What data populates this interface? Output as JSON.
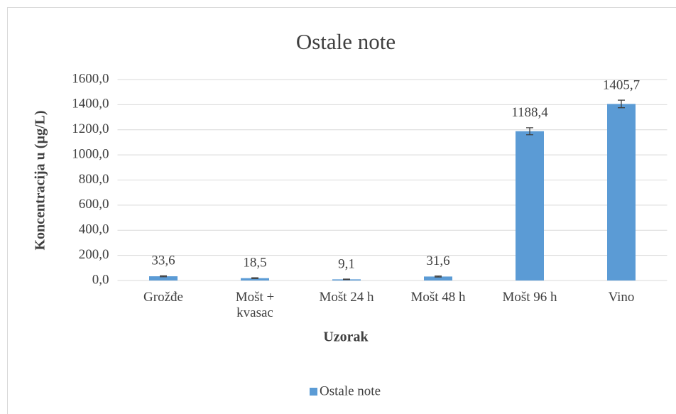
{
  "chart_data": {
    "type": "bar",
    "title": "Ostale note",
    "ylabel": "Koncentracija u (µg/L)",
    "xlabel": "Uzorak",
    "categories": [
      "Grožđe",
      "Mošt + kvasac",
      "Mošt 24 h",
      "Mošt 48 h",
      "Mošt 96 h",
      "Vino"
    ],
    "series": [
      {
        "name": "Ostale note",
        "color": "#5b9bd5",
        "values": [
          33.6,
          18.5,
          9.1,
          31.6,
          1188.4,
          1405.7
        ],
        "value_labels": [
          "33,6",
          "18,5",
          "9,1",
          "31,6",
          "1188,4",
          "1405,7"
        ],
        "errors": [
          4,
          3,
          2,
          4,
          28,
          30
        ]
      }
    ],
    "ylim": [
      0,
      1600
    ],
    "yticks": [
      {
        "value": 0,
        "label": "0,0"
      },
      {
        "value": 200,
        "label": "200,0"
      },
      {
        "value": 400,
        "label": "400,0"
      },
      {
        "value": 600,
        "label": "600,0"
      },
      {
        "value": 800,
        "label": "800,0"
      },
      {
        "value": 1000,
        "label": "1000,0"
      },
      {
        "value": 1200,
        "label": "1200,0"
      },
      {
        "value": 1400,
        "label": "1400,0"
      },
      {
        "value": 1600,
        "label": "1600,0"
      }
    ],
    "grid": true,
    "legend": "bottom"
  }
}
